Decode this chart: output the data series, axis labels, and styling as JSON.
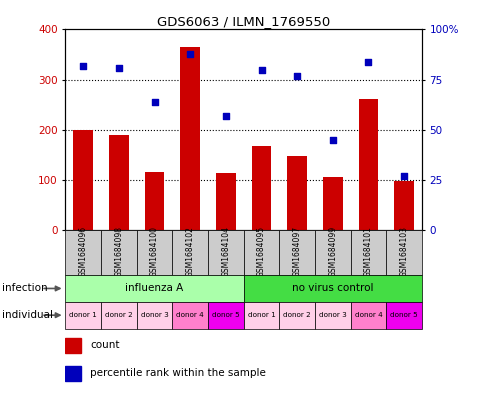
{
  "title": "GDS6063 / ILMN_1769550",
  "samples": [
    "GSM1684096",
    "GSM1684098",
    "GSM1684100",
    "GSM1684102",
    "GSM1684104",
    "GSM1684095",
    "GSM1684097",
    "GSM1684099",
    "GSM1684101",
    "GSM1684103"
  ],
  "counts": [
    200,
    190,
    115,
    365,
    113,
    168,
    148,
    105,
    262,
    98
  ],
  "percentiles": [
    82,
    81,
    64,
    88,
    57,
    80,
    77,
    45,
    84,
    27
  ],
  "infection_groups": [
    {
      "label": "influenza A",
      "start": 0,
      "end": 5,
      "color": "#AAFFAA"
    },
    {
      "label": "no virus control",
      "start": 5,
      "end": 10,
      "color": "#44DD44"
    }
  ],
  "donors": [
    "donor 1",
    "donor 2",
    "donor 3",
    "donor 4",
    "donor 5",
    "donor 1",
    "donor 2",
    "donor 3",
    "donor 4",
    "donor 5"
  ],
  "donor_colors": [
    "#FFD0E8",
    "#FFD0E8",
    "#FFD0E8",
    "#FF80CC",
    "#EE00EE",
    "#FFD0E8",
    "#FFD0E8",
    "#FFD0E8",
    "#FF80CC",
    "#EE00EE"
  ],
  "bar_color": "#CC0000",
  "scatter_color": "#0000BB",
  "ylim_left": [
    0,
    400
  ],
  "ylim_right": [
    0,
    100
  ],
  "yticks_left": [
    0,
    100,
    200,
    300,
    400
  ],
  "yticks_right": [
    0,
    25,
    50,
    75,
    100
  ],
  "ytick_labels_right": [
    "0",
    "25",
    "50",
    "75",
    "100%"
  ],
  "grid_color": "#000000",
  "background_color": "#ffffff",
  "label_count": "count",
  "label_percentile": "percentile rank within the sample",
  "label_infection": "infection",
  "label_individual": "individual",
  "sample_box_color": "#CCCCCC",
  "right_ytick_labels": [
    "0",
    "25",
    "50",
    "75",
    "100%"
  ]
}
